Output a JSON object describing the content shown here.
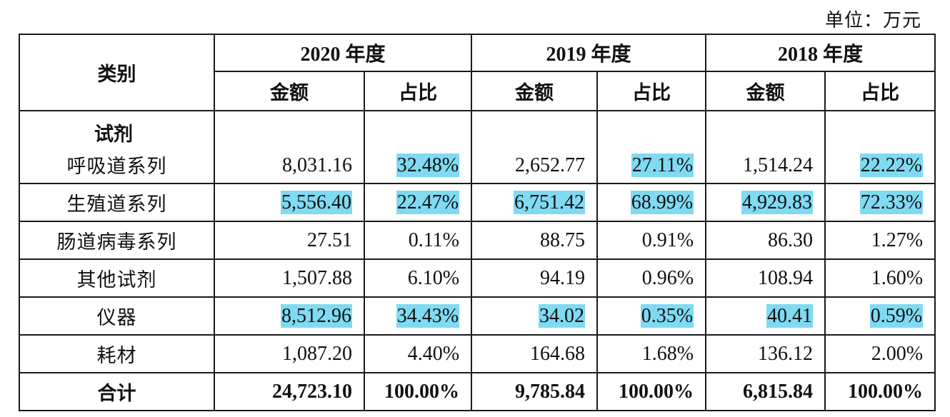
{
  "unit": "单位：万元",
  "header": {
    "category": "类别",
    "years": [
      "2020 年度",
      "2019 年度",
      "2018 年度"
    ],
    "amount": "金额",
    "ratio": "占比"
  },
  "section_label": "试剂",
  "rows": [
    {
      "name": "呼吸道系列",
      "v": [
        "8,031.16",
        "32.48%",
        "2,652.77",
        "27.11%",
        "1,514.24",
        "22.22%"
      ]
    },
    {
      "name": "生殖道系列",
      "v": [
        "5,556.40",
        "22.47%",
        "6,751.42",
        "68.99%",
        "4,929.83",
        "72.33%"
      ]
    },
    {
      "name": "肠道病毒系列",
      "v": [
        "27.51",
        "0.11%",
        "88.75",
        "0.91%",
        "86.30",
        "1.27%"
      ]
    },
    {
      "name": "其他试剂",
      "v": [
        "1,507.88",
        "6.10%",
        "94.19",
        "0.96%",
        "108.94",
        "1.60%"
      ]
    },
    {
      "name": "仪器",
      "v": [
        "8,512.96",
        "34.43%",
        "34.02",
        "0.35%",
        "40.41",
        "0.59%"
      ]
    },
    {
      "name": "耗材",
      "v": [
        "1,087.20",
        "4.40%",
        "164.68",
        "1.68%",
        "136.12",
        "2.00%"
      ]
    }
  ],
  "total": {
    "name": "合计",
    "v": [
      "24,723.10",
      "100.00%",
      "9,785.84",
      "100.00%",
      "6,815.84",
      "100.00%"
    ]
  },
  "highlight_color": "#7fdaf2"
}
